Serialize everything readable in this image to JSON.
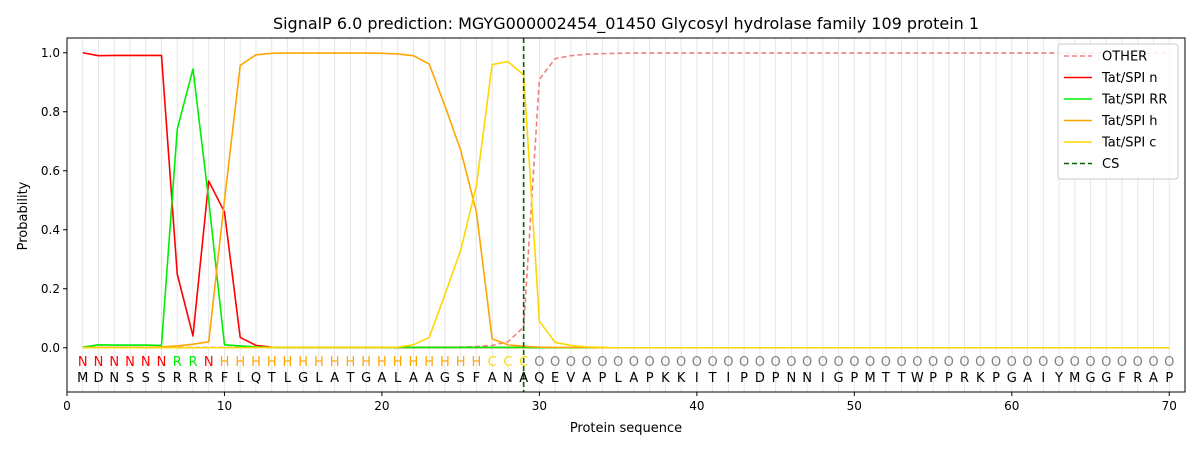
{
  "chart_data": {
    "type": "line",
    "title": "SignalP 6.0 prediction: MGYG000002454_01450 Glycosyl hydrolase family 109 protein 1",
    "xlabel": "Protein sequence",
    "ylabel": "Probability",
    "xlim": [
      0,
      71
    ],
    "ylim": [
      -0.15,
      1.05
    ],
    "x_ticks": [
      0,
      10,
      20,
      30,
      40,
      50,
      60,
      70
    ],
    "y_ticks": [
      0.0,
      0.2,
      0.4,
      0.6,
      0.8,
      1.0
    ],
    "x_tick_labels": [
      "0",
      "10",
      "20",
      "30",
      "40",
      "50",
      "60",
      "70"
    ],
    "y_tick_labels": [
      "0.0",
      "0.2",
      "0.4",
      "0.6",
      "0.8",
      "1.0"
    ],
    "grid": "vertical lines at every residue position",
    "legend_position": "top-right",
    "sequence": [
      "M",
      "D",
      "N",
      "S",
      "S",
      "S",
      "R",
      "R",
      "R",
      "F",
      "L",
      "Q",
      "T",
      "L",
      "G",
      "L",
      "A",
      "T",
      "G",
      "A",
      "L",
      "A",
      "A",
      "G",
      "S",
      "F",
      "A",
      "N",
      "A",
      "Q",
      "E",
      "V",
      "A",
      "P",
      "L",
      "A",
      "P",
      "K",
      "K",
      "I",
      "T",
      "I",
      "P",
      "D",
      "P",
      "N",
      "N",
      "I",
      "G",
      "P",
      "M",
      "T",
      "T",
      "W",
      "P",
      "P",
      "R",
      "K",
      "P",
      "G",
      "A",
      "I",
      "Y",
      "M",
      "G",
      "G",
      "F",
      "R",
      "A",
      "P"
    ],
    "region_labels": [
      "N",
      "N",
      "N",
      "N",
      "N",
      "N",
      "R",
      "R",
      "N",
      "H",
      "H",
      "H",
      "H",
      "H",
      "H",
      "H",
      "H",
      "H",
      "H",
      "H",
      "H",
      "H",
      "H",
      "H",
      "H",
      "H",
      "C",
      "C",
      "C",
      "O",
      "O",
      "O",
      "O",
      "O",
      "O",
      "O",
      "O",
      "O",
      "O",
      "O",
      "O",
      "O",
      "O",
      "O",
      "O",
      "O",
      "O",
      "O",
      "O",
      "O",
      "O",
      "O",
      "O",
      "O",
      "O",
      "O",
      "O",
      "O",
      "O",
      "O",
      "O",
      "O",
      "O",
      "O",
      "O",
      "O",
      "O",
      "O",
      "O",
      "O"
    ],
    "region_colors": {
      "N": "#ff0000",
      "R": "#00ee00",
      "H": "#ffa500",
      "C": "#ffd700",
      "O": "#808080"
    },
    "cs_position": 29,
    "series": [
      {
        "name": "OTHER",
        "color": "#f08080",
        "dash": "dashed",
        "values": [
          0.001,
          0.001,
          0.001,
          0.001,
          0.001,
          0.001,
          0.001,
          0.001,
          0.001,
          0.001,
          0.001,
          0.001,
          0.001,
          0.001,
          0.001,
          0.001,
          0.001,
          0.001,
          0.001,
          0.001,
          0.001,
          0.001,
          0.001,
          0.001,
          0.002,
          0.004,
          0.008,
          0.02,
          0.07,
          0.91,
          0.98,
          0.99,
          0.995,
          0.997,
          0.998,
          0.999,
          0.999,
          0.999,
          0.999,
          0.999,
          0.999,
          0.999,
          0.999,
          0.999,
          0.999,
          0.999,
          0.999,
          0.999,
          0.999,
          0.999,
          0.999,
          0.999,
          0.999,
          0.999,
          0.999,
          0.999,
          0.999,
          0.999,
          0.999,
          0.999,
          0.999,
          0.999,
          0.999,
          0.999,
          0.999,
          0.999,
          0.999,
          0.999,
          0.999,
          0.999
        ]
      },
      {
        "name": "Tat/SPI n",
        "color": "#ff0000",
        "dash": "solid",
        "values": [
          1.0,
          0.99,
          0.991,
          0.991,
          0.991,
          0.991,
          0.25,
          0.04,
          0.565,
          0.46,
          0.035,
          0.008,
          0.002,
          0.001,
          0.001,
          0.001,
          0.001,
          0.001,
          0.001,
          0.001,
          0.001,
          0.001,
          0.001,
          0.001,
          0.001,
          0.001,
          0.001,
          0.001,
          0.001,
          0.0,
          0.0,
          0.0,
          0.0,
          0.0,
          0.0,
          0.0,
          0.0,
          0.0,
          0.0,
          0.0,
          0.0,
          0.0,
          0.0,
          0.0,
          0.0,
          0.0,
          0.0,
          0.0,
          0.0,
          0.0,
          0.0,
          0.0,
          0.0,
          0.0,
          0.0,
          0.0,
          0.0,
          0.0,
          0.0,
          0.0,
          0.0,
          0.0,
          0.0,
          0.0,
          0.0,
          0.0,
          0.0,
          0.0,
          0.0,
          0.0
        ]
      },
      {
        "name": "Tat/SPI RR",
        "color": "#00ee00",
        "dash": "solid",
        "values": [
          0.002,
          0.01,
          0.009,
          0.009,
          0.009,
          0.008,
          0.74,
          0.945,
          0.5,
          0.01,
          0.006,
          0.003,
          0.001,
          0.001,
          0.001,
          0.001,
          0.001,
          0.001,
          0.001,
          0.001,
          0.001,
          0.001,
          0.001,
          0.001,
          0.001,
          0.001,
          0.001,
          0.001,
          0.001,
          0.0,
          0.0,
          0.0,
          0.0,
          0.0,
          0.0,
          0.0,
          0.0,
          0.0,
          0.0,
          0.0,
          0.0,
          0.0,
          0.0,
          0.0,
          0.0,
          0.0,
          0.0,
          0.0,
          0.0,
          0.0,
          0.0,
          0.0,
          0.0,
          0.0,
          0.0,
          0.0,
          0.0,
          0.0,
          0.0,
          0.0,
          0.0,
          0.0,
          0.0,
          0.0,
          0.0,
          0.0,
          0.0,
          0.0,
          0.0,
          0.0
        ]
      },
      {
        "name": "Tat/SPI h",
        "color": "#ffa500",
        "dash": "solid",
        "values": [
          0.001,
          0.001,
          0.001,
          0.001,
          0.001,
          0.003,
          0.006,
          0.012,
          0.02,
          0.5,
          0.957,
          0.993,
          0.998,
          0.999,
          0.999,
          0.999,
          0.999,
          0.999,
          0.999,
          0.998,
          0.996,
          0.99,
          0.962,
          0.82,
          0.67,
          0.46,
          0.03,
          0.01,
          0.005,
          0.002,
          0.001,
          0.001,
          0.001,
          0.0,
          0.0,
          0.0,
          0.0,
          0.0,
          0.0,
          0.0,
          0.0,
          0.0,
          0.0,
          0.0,
          0.0,
          0.0,
          0.0,
          0.0,
          0.0,
          0.0,
          0.0,
          0.0,
          0.0,
          0.0,
          0.0,
          0.0,
          0.0,
          0.0,
          0.0,
          0.0,
          0.0,
          0.0,
          0.0,
          0.0,
          0.0,
          0.0,
          0.0,
          0.0,
          0.0,
          0.0
        ]
      },
      {
        "name": "Tat/SPI c",
        "color": "#ffd700",
        "dash": "solid",
        "values": [
          0.0,
          0.0,
          0.0,
          0.0,
          0.0,
          0.0,
          0.0,
          0.0,
          0.0,
          0.0,
          0.0,
          0.001,
          0.001,
          0.001,
          0.001,
          0.001,
          0.001,
          0.001,
          0.001,
          0.001,
          0.002,
          0.01,
          0.035,
          0.18,
          0.33,
          0.55,
          0.96,
          0.97,
          0.925,
          0.09,
          0.018,
          0.008,
          0.003,
          0.001,
          0.0,
          0.0,
          0.0,
          0.0,
          0.0,
          0.0,
          0.0,
          0.0,
          0.0,
          0.0,
          0.0,
          0.0,
          0.0,
          0.0,
          0.0,
          0.0,
          0.0,
          0.0,
          0.0,
          0.0,
          0.0,
          0.0,
          0.0,
          0.0,
          0.0,
          0.0,
          0.0,
          0.0,
          0.0,
          0.0,
          0.0,
          0.0,
          0.0,
          0.0,
          0.0,
          0.0
        ]
      },
      {
        "name": "CS",
        "color": "#006400",
        "dash": "dashed",
        "values": []
      }
    ]
  }
}
